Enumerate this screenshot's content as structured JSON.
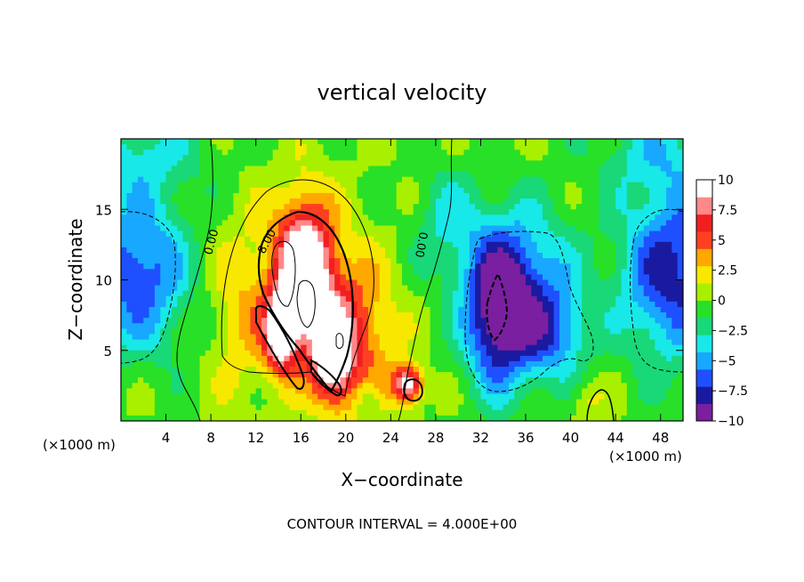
{
  "chart_data": {
    "type": "heatmap",
    "title": "vertical velocity",
    "xlabel": "X−coordinate",
    "ylabel": "Z−coordinate",
    "x_unit_left": "(×1000 m)",
    "x_unit_right": "(×1000 m)",
    "xlim": [
      0,
      50
    ],
    "ylim": [
      0,
      20
    ],
    "x_ticks": [
      4,
      8,
      12,
      16,
      20,
      24,
      28,
      32,
      36,
      40,
      44,
      48
    ],
    "y_ticks": [
      5,
      10,
      15
    ],
    "colorbar": {
      "min": -10,
      "max": 10,
      "tick_values": [
        10,
        7.5,
        5,
        2.5,
        0,
        -2.5,
        -5,
        -7.5,
        -10
      ],
      "tick_labels": [
        "10",
        "7.5",
        "5",
        "2.5",
        "0",
        "−2.5",
        "−5",
        "−7.5",
        "−10"
      ],
      "colors": [
        "#7a1fa0",
        "#1a1aa0",
        "#1e50ff",
        "#18a8ff",
        "#18e8e8",
        "#18d878",
        "#28e028",
        "#a8f000",
        "#f8e800",
        "#ffa800",
        "#ff4020",
        "#f02020",
        "#ff8888",
        "#ffffff"
      ]
    },
    "contour_interval_text": "CONTOUR INTERVAL = 4.000E+00",
    "contour_labels": [
      "0.00",
      "8.00",
      "0.00"
    ],
    "features": [
      {
        "name": "updraft core",
        "x": 16,
        "z": 10,
        "peak": 12
      },
      {
        "name": "updraft lobe",
        "x": 14,
        "z": 6,
        "peak": 9
      },
      {
        "name": "updraft lobe",
        "x": 18,
        "z": 5,
        "peak": 9
      },
      {
        "name": "small updraft",
        "x": 25.5,
        "z": 2.5,
        "peak": 9
      },
      {
        "name": "downdraft left",
        "x": 2,
        "z": 10,
        "peak": -7
      },
      {
        "name": "downdraft center",
        "x": 33,
        "z": 8,
        "peak": -10
      },
      {
        "name": "downdraft right",
        "x": 48,
        "z": 10,
        "peak": -8
      }
    ]
  }
}
